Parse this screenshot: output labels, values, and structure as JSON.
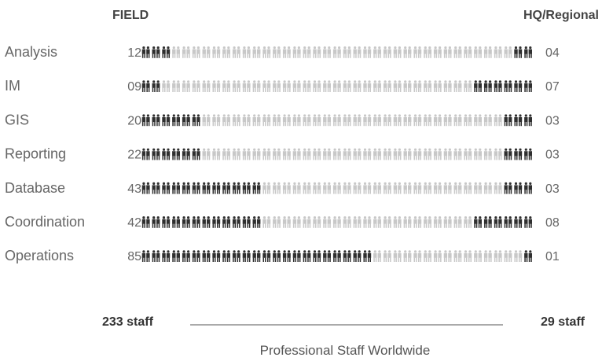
{
  "chart_data": {
    "type": "pictograph",
    "title": "Professional Staff Worldwide",
    "left_header": "FIELD",
    "right_header": "HQ/Regional",
    "categories": [
      "Analysis",
      "IM",
      "GIS",
      "Reporting",
      "Database",
      "Coordination",
      "Operations"
    ],
    "field_labels": [
      "12",
      "09",
      "20",
      "22",
      "43",
      "42",
      "85"
    ],
    "hq_labels": [
      "04",
      "07",
      "03",
      "03",
      "03",
      "08",
      "01"
    ],
    "field_values": [
      12,
      9,
      20,
      22,
      43,
      42,
      85
    ],
    "hq_values": [
      4,
      7,
      3,
      3,
      3,
      8,
      1
    ],
    "filled_field_pairs": [
      3,
      2,
      6,
      6,
      12,
      12,
      23
    ],
    "filled_hq_pairs": [
      2,
      6,
      3,
      3,
      3,
      6,
      1
    ],
    "total_field": "233 staff",
    "total_hq": "29 staff"
  },
  "colors": {
    "filled": "#2f2f2f",
    "empty": "#c8c8c8",
    "text": "#666666",
    "header": "#444444"
  }
}
